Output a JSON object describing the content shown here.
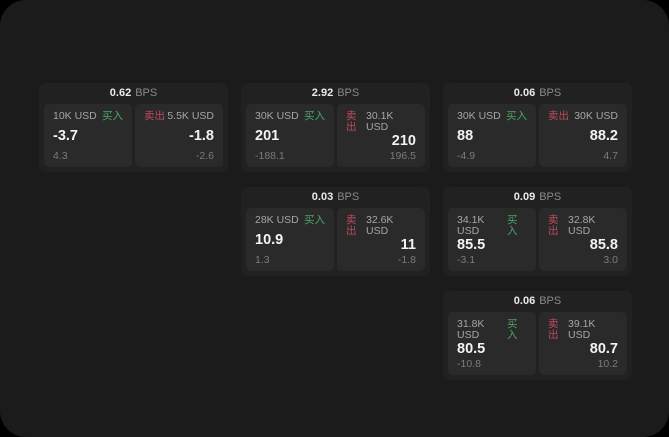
{
  "labels": {
    "buy": "买入",
    "sell": "卖出",
    "bps_unit": "BPS"
  },
  "colors": {
    "outer_background": "#000000",
    "surface": "#1b1b1b",
    "card_background": "#212121",
    "panel_background": "#2a2a2a",
    "buy_green": "#4da568",
    "sell_red": "#bf4a5c",
    "value_white": "#f3f3f3",
    "muted_gray": "#8a8a8a"
  },
  "cards": [
    {
      "bps": "0.62",
      "col": 1,
      "row": 1,
      "buy": {
        "amount": "10K USD",
        "value": "-3.7",
        "sub": "4.3"
      },
      "sell": {
        "amount": "5.5K USD",
        "value": "-1.8",
        "sub": "-2.6"
      }
    },
    {
      "bps": "2.92",
      "col": 2,
      "row": 1,
      "buy": {
        "amount": "30K USD",
        "value": "201",
        "sub": "-188.1"
      },
      "sell": {
        "amount": "30.1K USD",
        "value": "210",
        "sub": "196.5"
      }
    },
    {
      "bps": "0.06",
      "col": 3,
      "row": 1,
      "buy": {
        "amount": "30K USD",
        "value": "88",
        "sub": "-4.9"
      },
      "sell": {
        "amount": "30K USD",
        "value": "88.2",
        "sub": "4.7"
      }
    },
    {
      "bps": "0.03",
      "col": 2,
      "row": 2,
      "buy": {
        "amount": "28K USD",
        "value": "10.9",
        "sub": "1.3"
      },
      "sell": {
        "amount": "32.6K USD",
        "value": "11",
        "sub": "-1.8"
      }
    },
    {
      "bps": "0.09",
      "col": 3,
      "row": 2,
      "buy": {
        "amount": "34.1K USD",
        "value": "85.5",
        "sub": "-3.1"
      },
      "sell": {
        "amount": "32.8K USD",
        "value": "85.8",
        "sub": "3.0"
      }
    },
    {
      "bps": "0.06",
      "col": 3,
      "row": 3,
      "buy": {
        "amount": "31.8K USD",
        "value": "80.5",
        "sub": "-10.8"
      },
      "sell": {
        "amount": "39.1K USD",
        "value": "80.7",
        "sub": "10.2"
      }
    }
  ]
}
